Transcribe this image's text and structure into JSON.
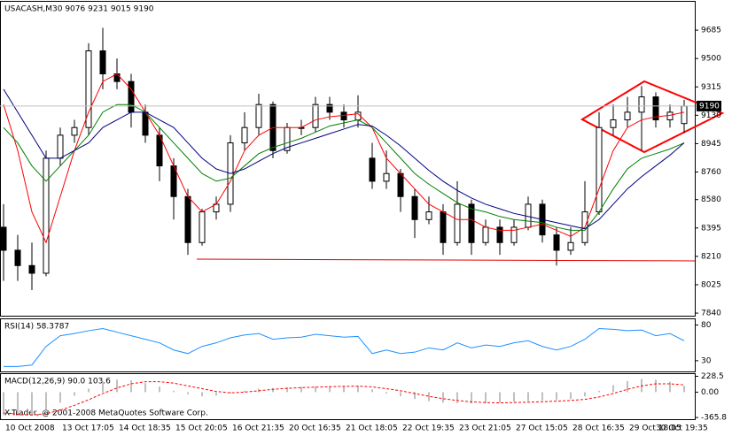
{
  "chart_data": [
    {
      "type": "candlestick",
      "title": "USACASH,M30  9076 9231 9015 9190",
      "categories": [
        "10 Oct 2008",
        null,
        null,
        null,
        "13 Oct 17:05",
        null,
        null,
        null,
        "14 Oct 18:35",
        null,
        null,
        null,
        "15 Oct 20:05",
        null,
        null,
        null,
        "16 Oct 21:35",
        null,
        null,
        null,
        "20 Oct 16:35",
        null,
        null,
        null,
        "21 Oct 18:05",
        null,
        null,
        null,
        "22 Oct 19:35",
        null,
        null,
        null,
        "23 Oct 21:05",
        null,
        null,
        null,
        "27 Oct 15:05",
        null,
        null,
        null,
        "28 Oct 16:35",
        null,
        null,
        null,
        "29 Oct 18:05",
        null,
        null,
        null,
        "30 Oct 19:35"
      ],
      "open": [
        8400,
        8250,
        8150,
        8100,
        8850,
        9000,
        9050,
        9550,
        9400,
        9350,
        9150,
        9000,
        8800,
        8600,
        8300,
        8500,
        8550,
        8950,
        9050,
        9200,
        8900,
        9050,
        9050,
        9200,
        9150,
        9100,
        8850,
        8700,
        8750,
        8600,
        8450,
        8500,
        8300,
        8550,
        8300,
        8400,
        8300,
        8400,
        8550,
        8350,
        8250,
        8300,
        8500,
        9050,
        9100,
        9150,
        9250,
        9100,
        9076
      ],
      "high": [
        8550,
        8350,
        8300,
        8900,
        9050,
        9100,
        9600,
        9700,
        9500,
        9400,
        9200,
        9050,
        8850,
        8650,
        8520,
        8600,
        9000,
        9150,
        9270,
        9220,
        9080,
        9100,
        9250,
        9250,
        9200,
        9260,
        8950,
        8900,
        8780,
        8650,
        8600,
        8550,
        8700,
        8580,
        8450,
        8450,
        8450,
        8600,
        8580,
        8400,
        8400,
        8700,
        9150,
        9200,
        9250,
        9320,
        9280,
        9200,
        9231
      ],
      "low": [
        8050,
        8050,
        7990,
        8080,
        8800,
        8950,
        9000,
        9300,
        9300,
        9050,
        8950,
        8700,
        8450,
        8220,
        8280,
        8450,
        8500,
        8900,
        9000,
        8850,
        8880,
        9000,
        9020,
        9100,
        9050,
        9050,
        8650,
        8650,
        8500,
        8330,
        8420,
        8220,
        8280,
        8220,
        8280,
        8220,
        8280,
        8380,
        8300,
        8150,
        8220,
        8280,
        8480,
        9000,
        9050,
        8900,
        9050,
        9050,
        9015
      ],
      "close": [
        8250,
        8150,
        8100,
        8850,
        9000,
        9050,
        9550,
        9400,
        9350,
        9150,
        9000,
        8800,
        8600,
        8300,
        8500,
        8550,
        8950,
        9050,
        9200,
        8900,
        9050,
        9050,
        9200,
        9150,
        9100,
        9150,
        8700,
        8750,
        8600,
        8450,
        8500,
        8300,
        8550,
        8300,
        8400,
        8300,
        8400,
        8550,
        8350,
        8250,
        8300,
        8500,
        9050,
        9100,
        9150,
        9250,
        9100,
        9150,
        9190
      ],
      "series": [
        {
          "color": "#ff0000",
          "values": [
            9200,
            8900,
            8500,
            8300,
            8600,
            8900,
            9150,
            9350,
            9400,
            9300,
            9150,
            9000,
            8800,
            8600,
            8500,
            8550,
            8700,
            8900,
            9000,
            9050,
            9050,
            9050,
            9100,
            9120,
            9130,
            9140,
            9050,
            8850,
            8750,
            8650,
            8550,
            8500,
            8450,
            8450,
            8400,
            8380,
            8380,
            8400,
            8420,
            8380,
            8340,
            8400,
            8650,
            8900,
            9050,
            9100,
            9120,
            9130,
            9150
          ]
        },
        {
          "color": "#008000",
          "values": [
            9050,
            8950,
            8800,
            8700,
            8800,
            8900,
            9000,
            9150,
            9200,
            9200,
            9150,
            9050,
            8950,
            8850,
            8750,
            8700,
            8720,
            8800,
            8880,
            8920,
            8950,
            8980,
            9020,
            9060,
            9080,
            9100,
            9050,
            8950,
            8850,
            8750,
            8680,
            8620,
            8560,
            8520,
            8500,
            8470,
            8450,
            8440,
            8430,
            8400,
            8380,
            8380,
            8500,
            8650,
            8780,
            8850,
            8880,
            8910,
            8950
          ]
        },
        {
          "color": "#000080",
          "values": [
            9300,
            9150,
            9000,
            8850,
            8850,
            8900,
            8950,
            9050,
            9100,
            9150,
            9150,
            9100,
            9050,
            8950,
            8850,
            8780,
            8750,
            8780,
            8830,
            8880,
            8920,
            8950,
            8980,
            9010,
            9040,
            9070,
            9060,
            9000,
            8930,
            8850,
            8770,
            8700,
            8640,
            8590,
            8550,
            8520,
            8490,
            8470,
            8450,
            8430,
            8410,
            8390,
            8450,
            8550,
            8650,
            8730,
            8800,
            8870,
            8950
          ]
        }
      ],
      "ylim": [
        7823,
        9870
      ],
      "yticks": [
        7840,
        8025,
        8210,
        8395,
        8580,
        8760,
        8945,
        9130,
        9315,
        9500,
        9685
      ]
    },
    {
      "type": "line",
      "title": "RSI(14) 58.3787",
      "color": "#1e90ff",
      "values": [
        22,
        22,
        24,
        50,
        65,
        68,
        72,
        75,
        70,
        65,
        60,
        55,
        45,
        40,
        50,
        55,
        62,
        66,
        68,
        60,
        62,
        63,
        67,
        65,
        63,
        64,
        40,
        45,
        40,
        42,
        48,
        45,
        55,
        48,
        52,
        50,
        55,
        58,
        50,
        45,
        50,
        60,
        75,
        74,
        72,
        73,
        65,
        68,
        58
      ],
      "ylim": [
        15,
        88
      ],
      "yticks": [
        30,
        80
      ]
    },
    {
      "type": "macd",
      "title": "MACD(12,26,9) 90.0 103.6",
      "color": "#c0c0c0",
      "signal_color": "#ff0000",
      "values": [
        -330,
        -340,
        -320,
        -250,
        -150,
        -50,
        50,
        150,
        180,
        170,
        130,
        80,
        20,
        -30,
        -60,
        -50,
        -20,
        20,
        50,
        60,
        70,
        75,
        80,
        85,
        90,
        90,
        40,
        -20,
        -60,
        -100,
        -130,
        -150,
        -160,
        -165,
        -160,
        -150,
        -140,
        -130,
        -120,
        -115,
        -100,
        -60,
        20,
        100,
        160,
        190,
        180,
        150,
        90
      ],
      "signal": [
        -300,
        -320,
        -330,
        -310,
        -260,
        -190,
        -110,
        -20,
        60,
        120,
        150,
        150,
        130,
        90,
        50,
        10,
        -10,
        0,
        20,
        40,
        55,
        65,
        72,
        78,
        83,
        87,
        75,
        50,
        20,
        -20,
        -60,
        -95,
        -120,
        -140,
        -150,
        -155,
        -150,
        -145,
        -138,
        -130,
        -120,
        -105,
        -70,
        -20,
        40,
        90,
        120,
        120,
        103.6
      ],
      "ylim": [
        -390,
        260
      ],
      "yticks": [
        228.5,
        {
          "value": 0,
          "label": "0.00"
        },
        -365.8
      ]
    }
  ],
  "footer": "X-Trader, @ 2001-2008 MetaQuotes Software Corp."
}
